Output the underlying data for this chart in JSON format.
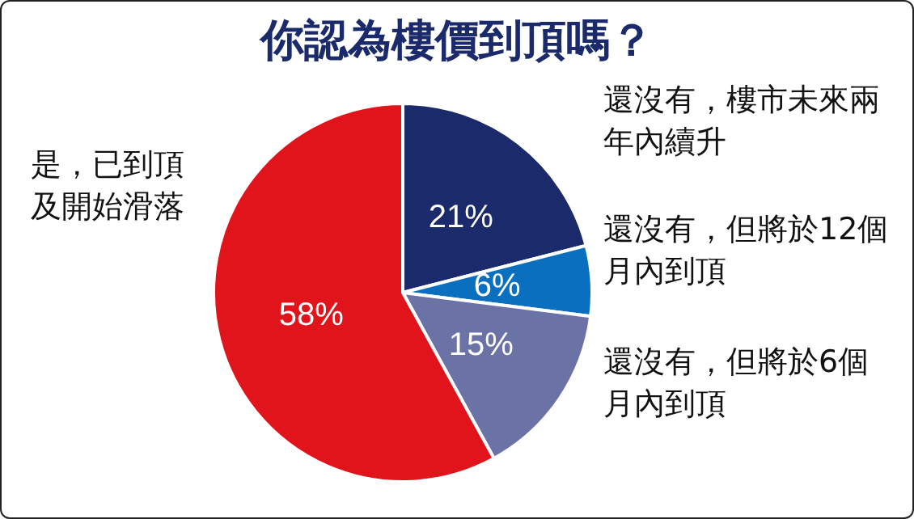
{
  "chart_data": {
    "type": "pie",
    "title": "你認為樓價到頂嗎？",
    "categories": [
      "還沒有，樓市未來兩年內續升",
      "還沒有，但將於12個月內到頂",
      "還沒有，但將於6個月內到頂",
      "是，已到頂及開始滑落"
    ],
    "values": [
      21,
      6,
      15,
      58
    ],
    "colors": [
      "#1b2a6b",
      "#0b6fc0",
      "#6b72a6",
      "#e1141c"
    ],
    "value_labels": [
      "21%",
      "6%",
      "15%",
      "58%"
    ],
    "legend": false
  }
}
